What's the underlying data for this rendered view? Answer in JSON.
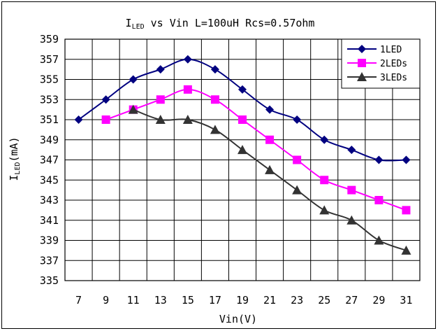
{
  "chart_data": {
    "type": "line",
    "title": {
      "main": "I",
      "sub": "LED",
      "rest": " vs Vin L=100uH Rcs=0.57ohm"
    },
    "xlabel": "Vin(V)",
    "ylabel": {
      "main": "I",
      "sub": "LED",
      "rest": "(mA)"
    },
    "x_ticks": [
      7,
      9,
      11,
      13,
      15,
      17,
      19,
      21,
      23,
      25,
      27,
      29,
      31
    ],
    "y_ticks": [
      335,
      337,
      339,
      341,
      343,
      345,
      347,
      349,
      351,
      353,
      355,
      357,
      359
    ],
    "xlim": [
      7,
      31
    ],
    "ylim": [
      335,
      359
    ],
    "grid": true,
    "legend_position": "top-right",
    "series": [
      {
        "name": "1LED",
        "color": "#000080",
        "marker": "diamond",
        "x": [
          7,
          9,
          11,
          13,
          15,
          17,
          19,
          21,
          23,
          25,
          27,
          29,
          31
        ],
        "y": [
          351,
          353,
          355,
          356,
          357,
          356,
          354,
          352,
          351,
          349,
          348,
          347,
          347
        ]
      },
      {
        "name": "2LEDs",
        "color": "#ff00ff",
        "marker": "square",
        "x": [
          9,
          11,
          13,
          15,
          17,
          19,
          21,
          23,
          25,
          27,
          29,
          31
        ],
        "y": [
          351,
          352,
          353,
          354,
          353,
          351,
          349,
          347,
          345,
          344,
          343,
          342
        ]
      },
      {
        "name": "3LEDs",
        "color": "#333333",
        "marker": "triangle",
        "x": [
          11,
          13,
          15,
          17,
          19,
          21,
          23,
          25,
          27,
          29,
          31
        ],
        "y": [
          352,
          351,
          351,
          350,
          348,
          346,
          344,
          342,
          341,
          339,
          338
        ]
      }
    ]
  }
}
